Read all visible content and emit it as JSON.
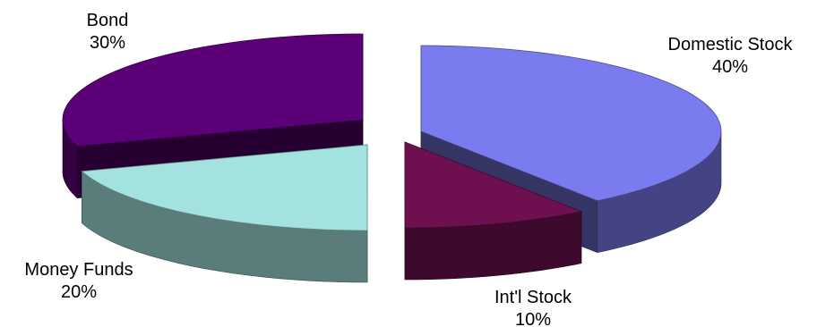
{
  "chart_data": {
    "type": "pie",
    "style": "3d-exploded",
    "title": "",
    "legend": "none",
    "slices": [
      {
        "name": "Domestic Stock",
        "value": 40,
        "label": "40%",
        "color": "#7b7bf0"
      },
      {
        "name": "Int'l Stock",
        "value": 10,
        "label": "10%",
        "color": "#6e1050"
      },
      {
        "name": "Money Funds",
        "value": 20,
        "label": "20%",
        "color": "#a4e2e0"
      },
      {
        "name": "Bond",
        "value": 30,
        "label": "30%",
        "color": "#5c0077"
      }
    ]
  }
}
